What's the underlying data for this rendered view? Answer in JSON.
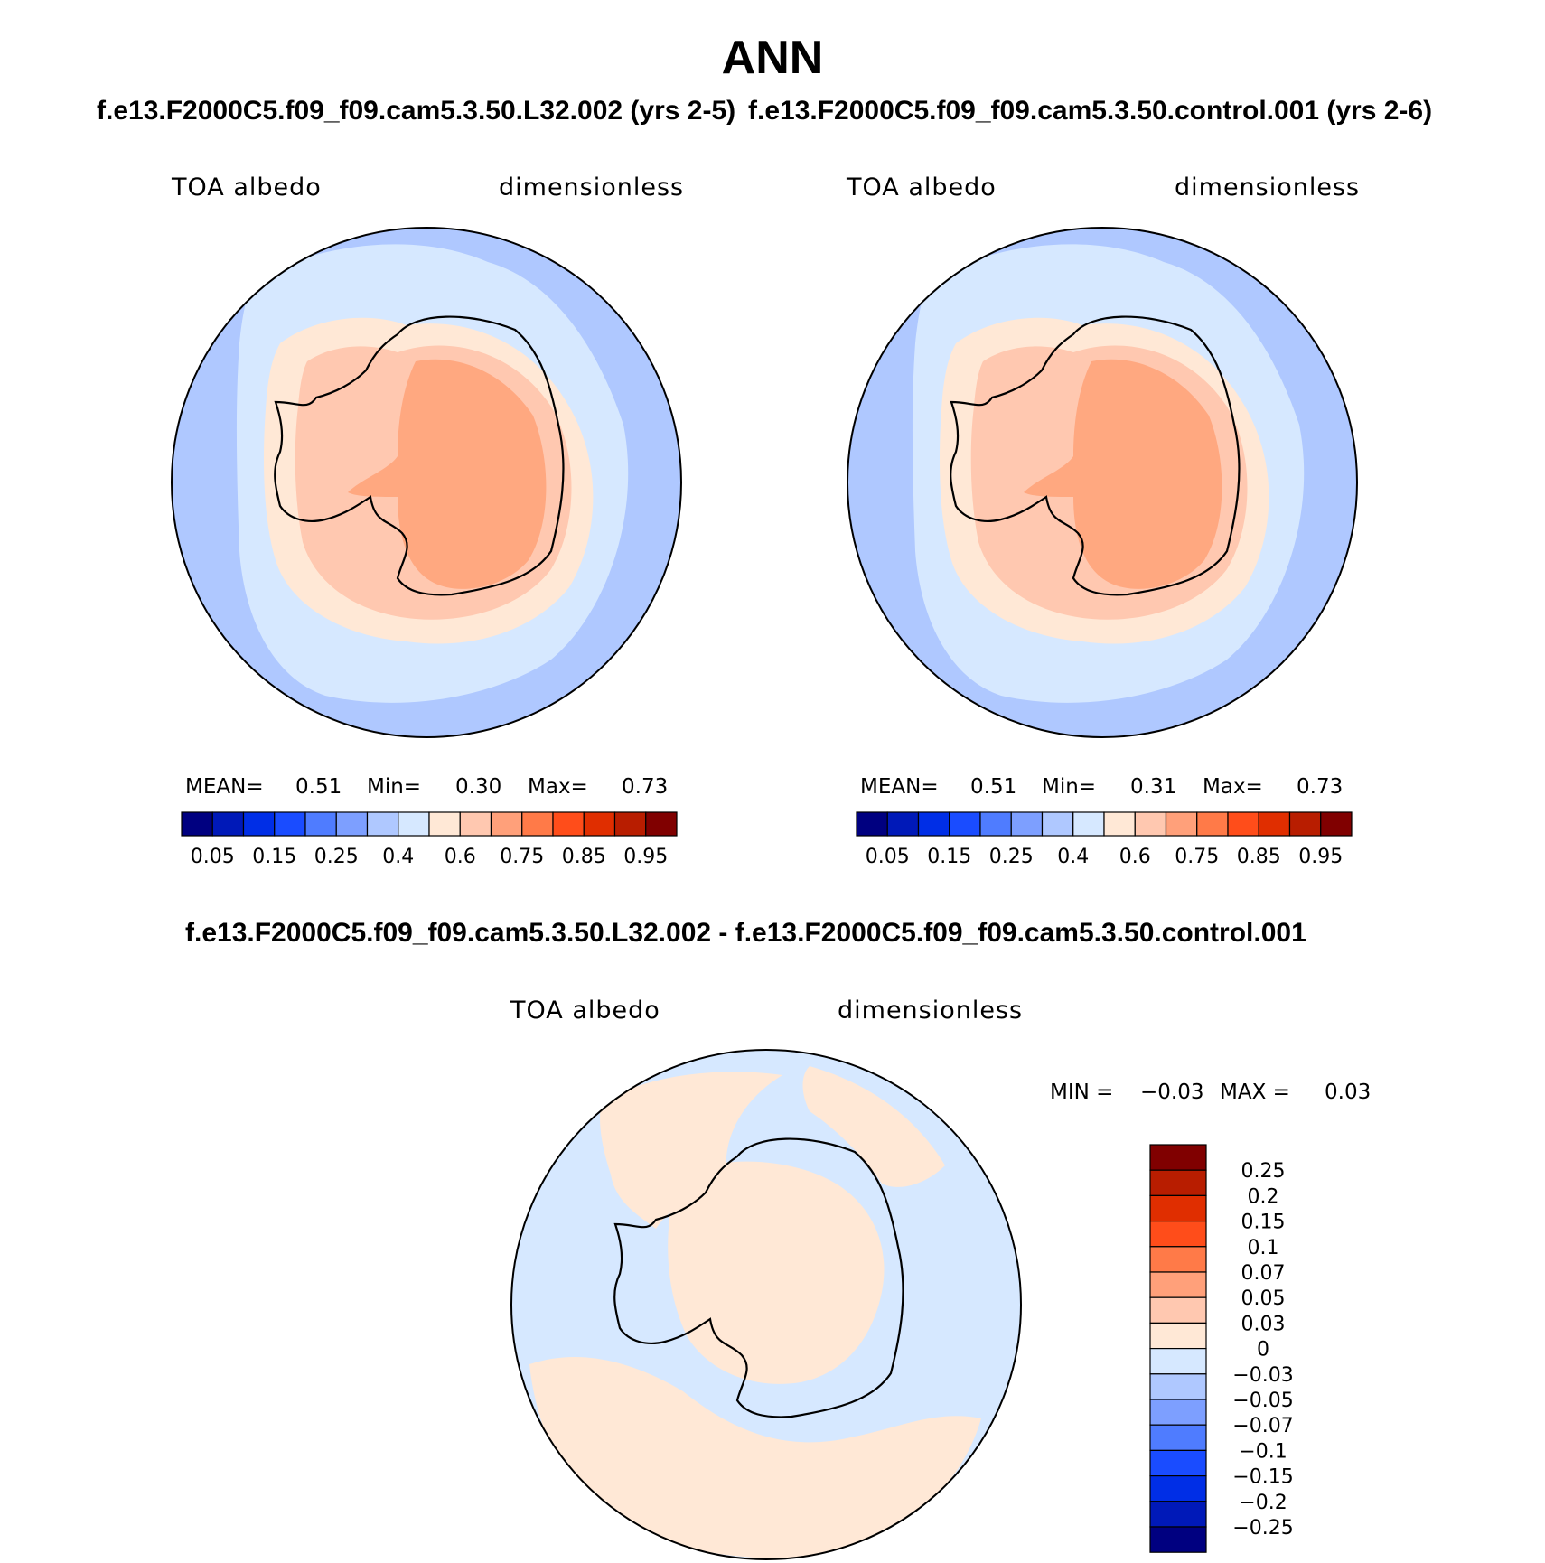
{
  "figure": {
    "title": "ANN",
    "colors": {
      "colorbar_15": [
        "#000080",
        "#0019b8",
        "#002ee6",
        "#1a4cff",
        "#4f7cff",
        "#7d9fff",
        "#afc8ff",
        "#d6e8ff",
        "#ffe8d6",
        "#ffc8b0",
        "#ffa07a",
        "#ff7a48",
        "#ff4d1a",
        "#e02e00",
        "#b81d00",
        "#800000"
      ],
      "land_outline": "#000000"
    }
  },
  "chart_data": [
    {
      "type": "heatmap",
      "projection": "south-polar-stereographic",
      "title": "f.e13.F2000C5.f09_f09.cam5.3.50.L32.002 (yrs 2-5)",
      "variable_label": "TOA albedo",
      "units_label": "dimensionless",
      "stats": {
        "mean_label": "MEAN=",
        "mean": "0.51",
        "min_label": "Min=",
        "min": "0.30",
        "max_label": "Max=",
        "max": "0.73"
      },
      "colorbar": {
        "orientation": "horizontal",
        "levels": [
          0.05,
          0.1,
          0.15,
          0.2,
          0.25,
          0.3,
          0.4,
          0.5,
          0.6,
          0.65,
          0.75,
          0.8,
          0.85,
          0.9,
          0.95
        ],
        "tick_labels": [
          "0.05",
          "0.15",
          "0.25",
          "0.4",
          "0.6",
          "0.75",
          "0.85",
          "0.95"
        ]
      }
    },
    {
      "type": "heatmap",
      "projection": "south-polar-stereographic",
      "title": "f.e13.F2000C5.f09_f09.cam5.3.50.control.001 (yrs 2-6)",
      "variable_label": "TOA albedo",
      "units_label": "dimensionless",
      "stats": {
        "mean_label": "MEAN=",
        "mean": "0.51",
        "min_label": "Min=",
        "min": "0.31",
        "max_label": "Max=",
        "max": "0.73"
      },
      "colorbar": {
        "orientation": "horizontal",
        "levels": [
          0.05,
          0.1,
          0.15,
          0.2,
          0.25,
          0.3,
          0.4,
          0.5,
          0.6,
          0.65,
          0.75,
          0.8,
          0.85,
          0.9,
          0.95
        ],
        "tick_labels": [
          "0.05",
          "0.15",
          "0.25",
          "0.4",
          "0.6",
          "0.75",
          "0.85",
          "0.95"
        ]
      }
    },
    {
      "type": "heatmap",
      "projection": "south-polar-stereographic",
      "title": "f.e13.F2000C5.f09_f09.cam5.3.50.L32.002 - f.e13.F2000C5.f09_f09.cam5.3.50.control.001",
      "variable_label": "TOA albedo",
      "units_label": "dimensionless",
      "stats": {
        "min_label": "MIN =",
        "min": "−0.03",
        "max_label": "MAX =",
        "max": "0.03"
      },
      "colorbar": {
        "orientation": "vertical",
        "levels": [
          0.25,
          0.2,
          0.15,
          0.1,
          0.07,
          0.05,
          0.03,
          0,
          -0.03,
          -0.05,
          -0.07,
          -0.1,
          -0.15,
          -0.2,
          -0.25
        ],
        "tick_labels": [
          "0.25",
          "0.2",
          "0.15",
          "0.1",
          "0.07",
          "0.05",
          "0.03",
          "0",
          "−0.03",
          "−0.05",
          "−0.07",
          "−0.1",
          "−0.15",
          "−0.2",
          "−0.25"
        ]
      }
    }
  ]
}
